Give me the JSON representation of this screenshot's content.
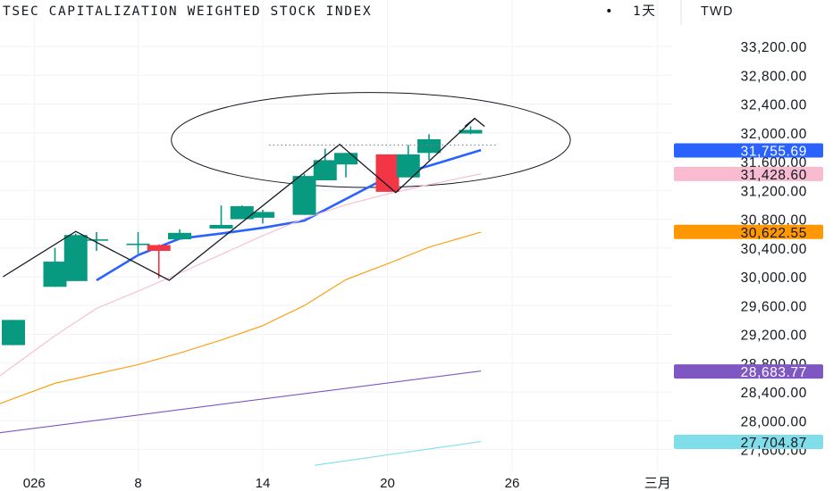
{
  "header": {
    "title": "TSEC CAPITALIZATION WEIGHTED STOCK INDEX",
    "separator": "•",
    "interval": "1天",
    "currency": "TWD"
  },
  "chart_data": {
    "type": "candlestick",
    "y_ticks": [
      "33,200.00",
      "32,800.00",
      "32,400.00",
      "32,000.00",
      "31,600.00",
      "31,200.00",
      "30,800.00",
      "30,400.00",
      "30,000.00",
      "29,600.00",
      "29,200.00",
      "28,800.00",
      "28,400.00",
      "28,000.00",
      "27,600.00"
    ],
    "y_tick_values": [
      33200,
      32800,
      32400,
      32000,
      31600,
      31200,
      30800,
      30400,
      30000,
      29600,
      29200,
      28800,
      28400,
      28000,
      27600
    ],
    "x_ticks": [
      "026",
      "8",
      "14",
      "20",
      "26",
      "三月"
    ],
    "x_tick_slots": [
      1,
      6,
      12,
      18,
      24,
      31
    ],
    "candles": [
      {
        "slot": 0,
        "open": 29050,
        "high": 29400,
        "low": 29050,
        "close": 29400
      },
      {
        "slot": 2,
        "open": 29860,
        "high": 30400,
        "low": 29860,
        "close": 30210
      },
      {
        "slot": 3,
        "open": 29940,
        "high": 30600,
        "low": 29940,
        "close": 30580
      },
      {
        "slot": 4,
        "open": 30500,
        "high": 30620,
        "low": 30360,
        "close": 30520
      },
      {
        "slot": 6,
        "open": 30440,
        "high": 30620,
        "low": 30320,
        "close": 30460
      },
      {
        "slot": 7,
        "open": 30440,
        "high": 30450,
        "low": 29980,
        "close": 30360
      },
      {
        "slot": 8,
        "open": 30520,
        "high": 30660,
        "low": 30520,
        "close": 30610
      },
      {
        "slot": 10,
        "open": 30670,
        "high": 30990,
        "low": 30670,
        "close": 30720
      },
      {
        "slot": 11,
        "open": 30800,
        "high": 30990,
        "low": 30800,
        "close": 30980
      },
      {
        "slot": 12,
        "open": 30820,
        "high": 30930,
        "low": 30740,
        "close": 30900
      },
      {
        "slot": 14,
        "open": 30860,
        "high": 31430,
        "low": 30860,
        "close": 31400
      },
      {
        "slot": 15,
        "open": 31340,
        "high": 31780,
        "low": 31340,
        "close": 31620
      },
      {
        "slot": 16,
        "open": 31560,
        "high": 31720,
        "low": 31380,
        "close": 31720
      },
      {
        "slot": 18,
        "open": 31700,
        "high": 31700,
        "low": 31180,
        "close": 31180
      },
      {
        "slot": 19,
        "open": 31380,
        "high": 31830,
        "low": 31380,
        "close": 31700
      },
      {
        "slot": 20,
        "open": 31720,
        "high": 31980,
        "low": 31620,
        "close": 31910
      },
      {
        "slot": 22,
        "open": 31990,
        "high": 32090,
        "low": 31980,
        "close": 32040
      }
    ],
    "ma_series": [
      {
        "color": "#2962ff",
        "x": [
          4,
          6,
          8,
          10,
          12,
          14,
          16,
          18,
          20,
          22.5
        ],
        "y": [
          29950,
          30300,
          30530,
          30600,
          30680,
          30780,
          31080,
          31380,
          31540,
          31760
        ]
      },
      {
        "color": "#f8bbd0",
        "x": [
          -1,
          2,
          4,
          6,
          8,
          10,
          12,
          14,
          16,
          18,
          20,
          22.5
        ],
        "y": [
          28550,
          29180,
          29560,
          29800,
          30050,
          30310,
          30570,
          30810,
          31000,
          31150,
          31280,
          31430
        ]
      },
      {
        "color": "#ff9800",
        "x": [
          -1,
          2,
          4,
          6,
          8,
          10,
          12,
          14,
          16,
          18,
          20,
          22.5
        ],
        "y": [
          28200,
          28520,
          28650,
          28780,
          28940,
          29120,
          29320,
          29600,
          29960,
          30180,
          30410,
          30620
        ]
      },
      {
        "color": "#7e57c2",
        "x": [
          -1,
          22.5
        ],
        "y": [
          27820,
          28690
        ]
      },
      {
        "color": "#80deea",
        "x": [
          14.5,
          22.5
        ],
        "y": [
          27380,
          27710
        ]
      }
    ],
    "price_labels": [
      {
        "text": "31,755.69",
        "value": 31755.69,
        "color": "#2962ff"
      },
      {
        "text": "31,428.60",
        "value": 31428.6,
        "color": "#f8bbd0"
      },
      {
        "text": "30,622.55",
        "value": 30622.55,
        "color": "#ff9800"
      },
      {
        "text": "28,683.77",
        "value": 28683.77,
        "color": "#7e57c2"
      },
      {
        "text": "27,704.87",
        "value": 27704.87,
        "color": "#80deea"
      }
    ],
    "drawings": {
      "zigzag": {
        "x": [
          -0.5,
          3,
          7.5,
          15.7,
          18.4,
          22.2
        ],
        "y": [
          30000,
          30630,
          29950,
          31840,
          31170,
          32200
        ]
      },
      "arrowhead_at": {
        "x": 22.2,
        "y": 32200
      },
      "dotted_line": {
        "x": [
          12.3,
          23.2
        ],
        "y": 31830
      },
      "ellipse": {
        "cx": 17.2,
        "cy": 31900,
        "rx": 9.6,
        "ry": 660
      }
    },
    "colors": {
      "up": "#089981",
      "down": "#f23645",
      "grid": "#f0f3fa",
      "text": "#131722"
    }
  }
}
